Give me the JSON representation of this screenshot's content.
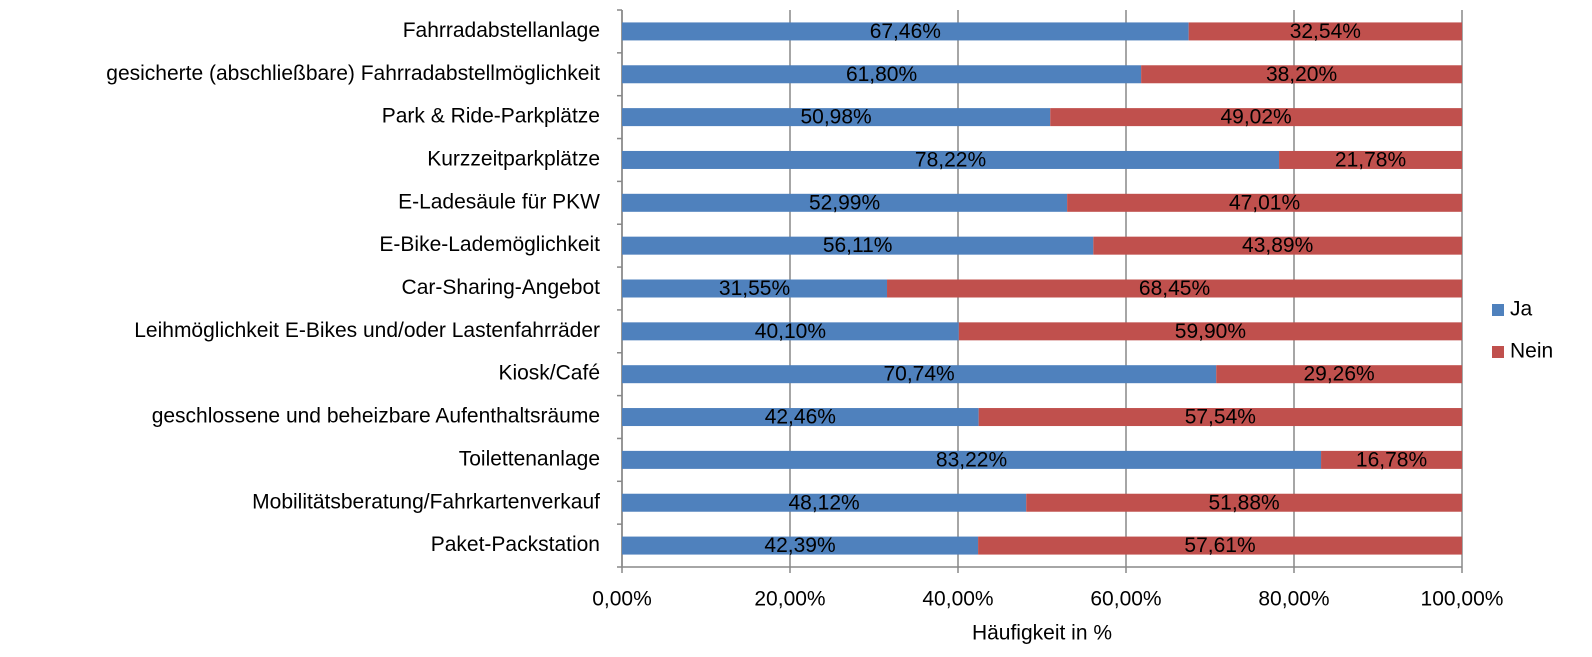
{
  "chart_data": {
    "type": "stacked_bar_horizontal",
    "categories": [
      "Fahrradabstellanlage",
      "gesicherte (abschließbare) Fahrradabstellmöglichkeit",
      "Park & Ride-Parkplätze",
      "Kurzzeitparkplätze",
      "E-Ladesäule für PKW",
      "E-Bike-Lademöglichkeit",
      "Car-Sharing-Angebot",
      "Leihmöglichkeit E-Bikes und/oder Lastenfahrräder",
      "Kiosk/Café",
      "geschlossene und beheizbare Aufenthaltsräume",
      "Toilettenanlage",
      "Mobilitätsberatung/Fahrkartenverkauf",
      "Paket-Packstation"
    ],
    "series": [
      {
        "name": "Ja",
        "color": "#4f81bd",
        "values": [
          67.46,
          61.8,
          50.98,
          78.22,
          52.99,
          56.11,
          31.55,
          40.1,
          70.74,
          42.46,
          83.22,
          48.12,
          42.39
        ],
        "value_labels": [
          "67,46%",
          "61,80%",
          "50,98%",
          "78,22%",
          "52,99%",
          "56,11%",
          "31,55%",
          "40,10%",
          "70,74%",
          "42,46%",
          "83,22%",
          "48,12%",
          "42,39%"
        ]
      },
      {
        "name": "Nein",
        "color": "#c0504d",
        "values": [
          32.54,
          38.2,
          49.02,
          21.78,
          47.01,
          43.89,
          68.45,
          59.9,
          29.26,
          57.54,
          16.78,
          51.88,
          57.61
        ],
        "value_labels": [
          "32,54%",
          "38,20%",
          "49,02%",
          "21,78%",
          "47,01%",
          "43,89%",
          "68,45%",
          "59,90%",
          "29,26%",
          "57,54%",
          "16,78%",
          "51,88%",
          "57,61%"
        ]
      }
    ],
    "x_label": "Häufigkeit in %",
    "xlim": [
      0,
      100
    ],
    "xticks": [
      {
        "value": 0,
        "label": "0,00%"
      },
      {
        "value": 20,
        "label": "20,00%"
      },
      {
        "value": 40,
        "label": "40,00%"
      },
      {
        "value": 60,
        "label": "60,00%"
      },
      {
        "value": 80,
        "label": "80,00%"
      },
      {
        "value": 100,
        "label": "100,00%"
      }
    ],
    "grid": true,
    "legend": "right"
  }
}
